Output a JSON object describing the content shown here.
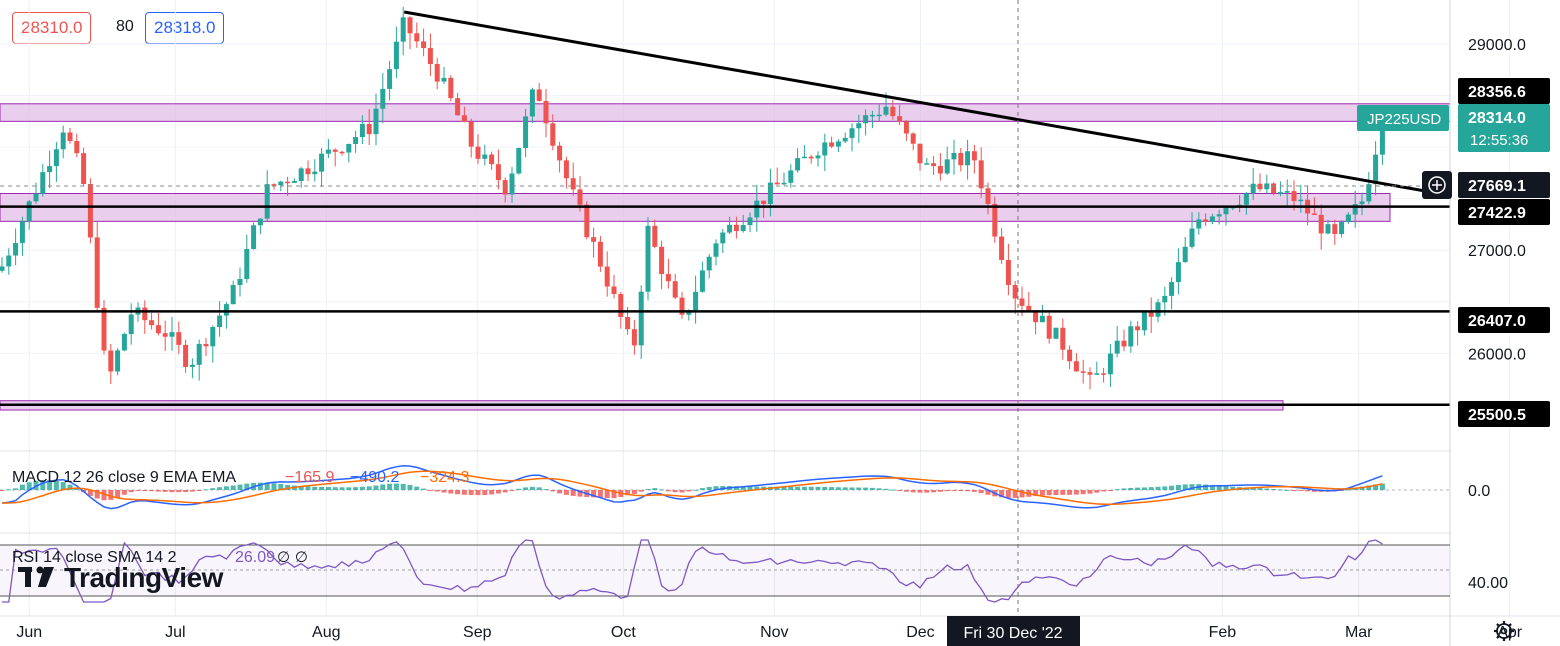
{
  "header": {
    "bid": "28310.0",
    "spread": "80",
    "ask": "28318.0"
  },
  "chart_data": {
    "type": "candlestick",
    "symbol": "JP225USD",
    "price_scale_labels": [
      "29000.0",
      "27000.0",
      "26000.0"
    ],
    "time_labels": [
      "Jun",
      "Jul",
      "Aug",
      "Sep",
      "Oct",
      "Nov",
      "Dec",
      "Fri 30 Dec '22",
      "Feb",
      "Mar",
      "Apr"
    ],
    "current_price": {
      "value": "28314.0",
      "countdown": "12:55:36"
    },
    "crosshair_price": "27669.1",
    "horizontal_levels": [
      {
        "value": 28356.6,
        "label": "28356.6",
        "color": "#000000"
      },
      {
        "value": 27422.9,
        "label": "27422.9",
        "color": "#000000"
      },
      {
        "value": 26407.0,
        "label": "26407.0",
        "color": "#000000"
      },
      {
        "value": 25500.5,
        "label": "25500.5",
        "color": "#000000"
      }
    ],
    "zones": [
      {
        "from": 28250,
        "to": 28420
      },
      {
        "from": 27280,
        "to": 27550
      },
      {
        "from": 25450,
        "to": 25540
      }
    ],
    "trendline": {
      "from": {
        "date": "2022-08-17",
        "price": 29310
      },
      "to": {
        "date": "2023-03-20",
        "price": 27530
      }
    },
    "colors": {
      "up": "#26a69a",
      "down": "#ef5350",
      "zone_fill": "#e1bee7",
      "zone_border": "#9c27b0"
    },
    "macd": {
      "label": "MACD 12 26 close 9 EMA EMA",
      "hist": "−165.9",
      "macd": "−490.2",
      "signal": "−324.3",
      "zero_label": "0.0",
      "macd_color": "#2962ff",
      "signal_color": "#ff6d00"
    },
    "rsi": {
      "label": "RSI 14 close SMA 14 2",
      "value": "26.09",
      "extra": "∅ ∅",
      "level_label": "40.00",
      "color": "#7e57c2"
    }
  },
  "branding": {
    "logo_text": "TradingView"
  },
  "icons": {
    "settings": "gear-icon",
    "crosshair": "plus-circle-icon"
  }
}
